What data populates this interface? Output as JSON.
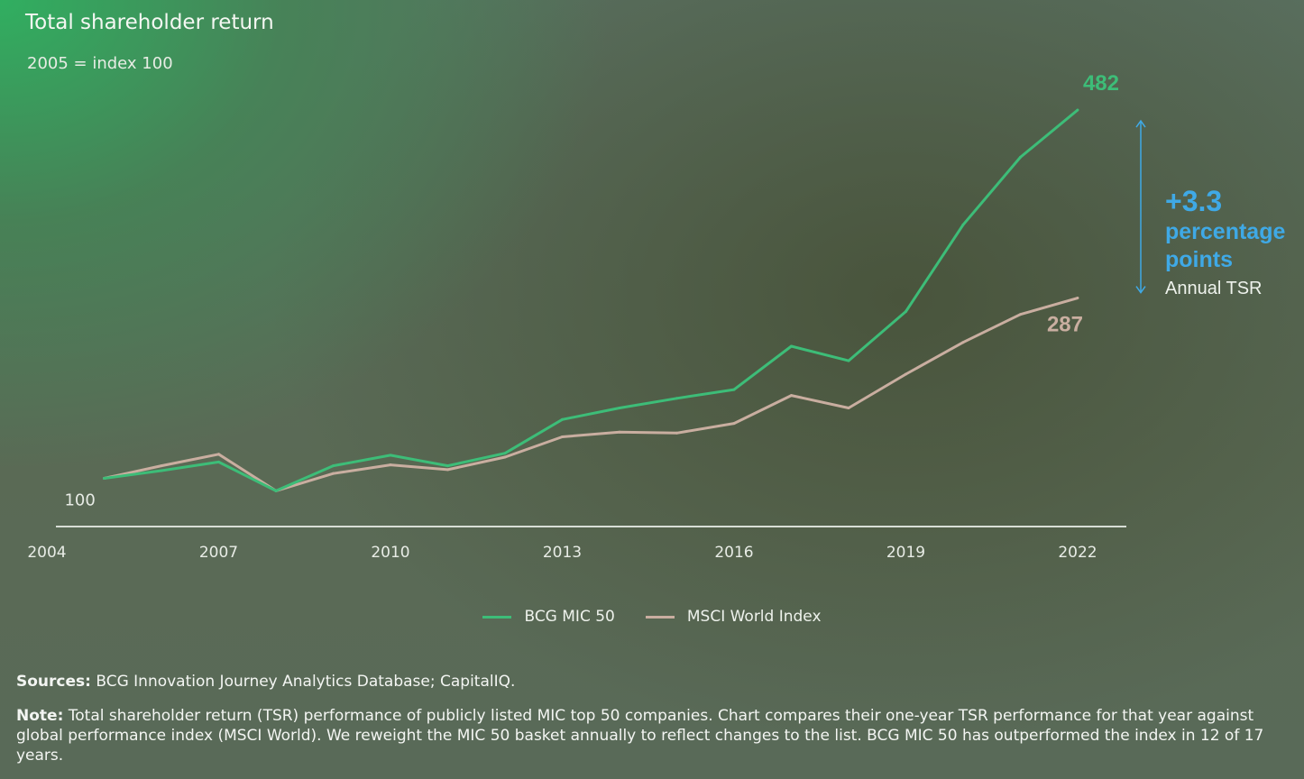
{
  "header": {
    "title": "Total shareholder return",
    "subtitle": "2005 = index 100"
  },
  "callout": {
    "value": "+3.3",
    "line1": "percentage",
    "line2": "points",
    "caption": "Annual TSR"
  },
  "footer": {
    "sources_label": "Sources:",
    "sources_text": " BCG Innovation Journey Analytics Database; CapitalIQ.",
    "note_label": "Note:",
    "note_text": " Total shareholder return (TSR) performance of publicly listed MIC top 50 companies. Chart compares their one-year TSR performance for that year against global performance index (MSCI World). We reweight the MIC 50 basket annually to reflect changes to the list. BCG MIC 50 has outperformed the index in 12 of 17 years."
  },
  "colors": {
    "mic": "#3dbd78",
    "msci": "#c9aea0",
    "axis": "#d8ded6",
    "callout": "#3fa9e6"
  },
  "chart_data": {
    "type": "line",
    "title": "Total shareholder return",
    "subtitle": "2005 = index 100",
    "xlabel": "",
    "ylabel": "",
    "xlim": [
      2004,
      2022.3
    ],
    "ylim": [
      50,
      540
    ],
    "x_ticks": [
      2004,
      2007,
      2010,
      2013,
      2016,
      2019,
      2022
    ],
    "x": [
      2005,
      2006,
      2007,
      2008,
      2009,
      2010,
      2011,
      2012,
      2013,
      2014,
      2015,
      2016,
      2017,
      2018,
      2019,
      2020,
      2021,
      2022
    ],
    "series": [
      {
        "name": "BCG MIC 50",
        "color": "#3dbd78",
        "values": [
          100,
          108,
          117,
          87,
          113,
          124,
          113,
          126,
          161,
          173,
          183,
          192,
          237,
          222,
          273,
          363,
          433,
          482
        ]
      },
      {
        "name": "MSCI World Index",
        "color": "#c9aea0",
        "values": [
          100,
          113,
          125,
          87,
          105,
          114,
          109,
          122,
          143,
          148,
          147,
          157,
          186,
          173,
          208,
          241,
          270,
          287
        ]
      }
    ],
    "start_label": "100",
    "end_labels": {
      "BCG MIC 50": "482",
      "MSCI World Index": "287"
    },
    "legend_position": "bottom-center"
  }
}
